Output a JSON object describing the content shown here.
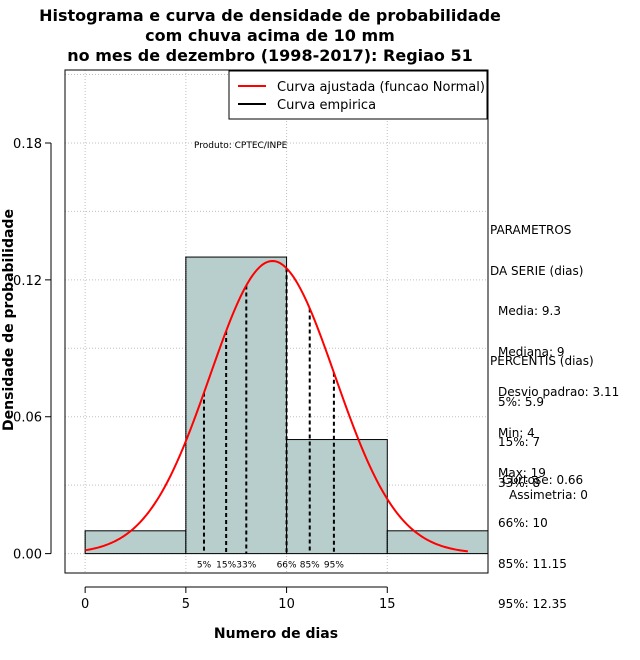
{
  "chart_data": {
    "type": "bar",
    "title": [
      "Histograma e curva de densidade de probabilidade",
      "com chuva acima de 10 mm",
      "no mes de dezembro (1998-2017): Regiao 51"
    ],
    "xlabel": "Numero de dias",
    "ylabel": "Densidade de probabilidade",
    "xlim": [
      -1,
      20
    ],
    "ylim": [
      -0.0085,
      0.212
    ],
    "x_ticks": [
      0,
      5,
      10,
      15
    ],
    "y_ticks": [
      0.0,
      0.06,
      0.12,
      0.18
    ],
    "y_tick_labels": [
      "0.00",
      "0.06",
      "0.12",
      "0.18"
    ],
    "grid": true,
    "bins": [
      {
        "x0": 0,
        "x1": 5,
        "density": 0.01
      },
      {
        "x0": 5,
        "x1": 10,
        "density": 0.13
      },
      {
        "x0": 10,
        "x1": 15,
        "density": 0.05
      },
      {
        "x0": 15,
        "x1": 20,
        "density": 0.01
      }
    ],
    "normal_curve": {
      "mean": 9.3,
      "sd": 3.11,
      "from": 0,
      "to": 19,
      "color": "#ff0000"
    },
    "empirical_color": "#000000",
    "bar_fill": "#b7cecd",
    "percentile_lines": [
      {
        "label": "5%",
        "x": 5.9
      },
      {
        "label": "15%",
        "x": 7
      },
      {
        "label": "33%",
        "x": 8
      },
      {
        "label": "66%",
        "x": 10
      },
      {
        "label": "85%",
        "x": 11.15
      },
      {
        "label": "95%",
        "x": 12.35
      }
    ],
    "legend": {
      "position": "top-right",
      "entries": [
        {
          "label": "Curva ajustada (funcao Normal)",
          "color": "#ff0000"
        },
        {
          "label": "Curva empirica",
          "color": "#000000"
        }
      ]
    },
    "annotation": "Produto: CPTEC/INPE"
  },
  "parametros": {
    "heading": [
      "PARAMETROS",
      "DA SERIE (dias)"
    ],
    "items": [
      "Media: 9.3",
      "Mediana: 9",
      "Desvio padrao: 3.11",
      "Min: 4",
      "Max: 19"
    ]
  },
  "percentis": {
    "heading": "PERCENTIS (dias)",
    "items": [
      "5%: 5.9",
      "15%: 7",
      "33%: 8",
      "66%: 10",
      "85%: 11.15",
      "95%: 12.35"
    ]
  },
  "curtose": "Curtose: 0.66",
  "assimetria": "Assimetria: 0"
}
